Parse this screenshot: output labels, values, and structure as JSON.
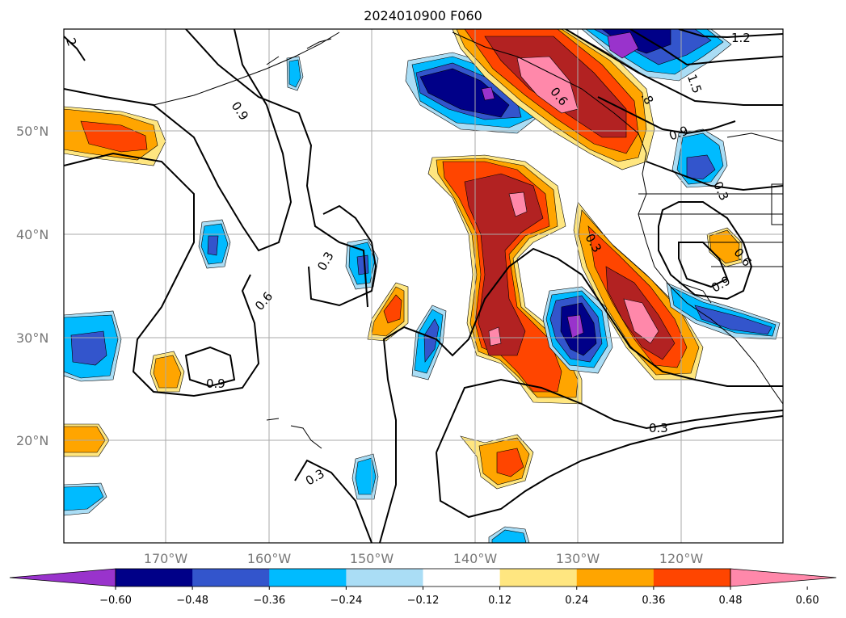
{
  "title": "2024010900 F060",
  "map": {
    "lat_labels": [
      "50°N",
      "40°N",
      "30°N",
      "20°N"
    ],
    "lon_labels": [
      "170°W",
      "160°W",
      "150°W",
      "140°W",
      "130°W",
      "120°W"
    ],
    "contour_labels": [
      "1.2",
      "1.5",
      ".8",
      "0.9",
      "0.9",
      "0.6",
      "0.3",
      "0.6",
      "0.9",
      "0.3",
      "0.3",
      "0.6",
      "0.3",
      "0.9",
      "0.3",
      "2"
    ],
    "land_color": "#ffffff",
    "grid": true
  },
  "colorbar": {
    "ticks": [
      "−0.60",
      "−0.48",
      "−0.36",
      "−0.24",
      "−0.12",
      "0.12",
      "0.24",
      "0.36",
      "0.48",
      "0.60"
    ],
    "colors": [
      "#9933cc",
      "#000088",
      "#3355cc",
      "#00bbff",
      "#aaddf5",
      "#ffffff",
      "#ffe680",
      "#ffa500",
      "#ff4500",
      "#b22222",
      "#ff88aa"
    ]
  }
}
